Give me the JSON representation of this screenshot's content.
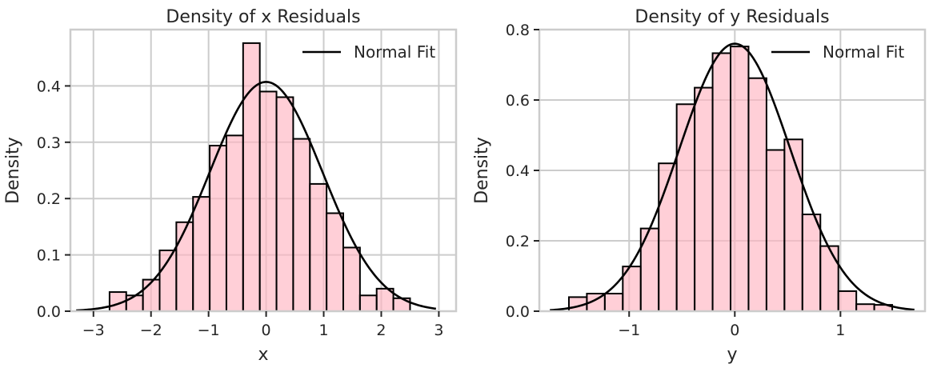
{
  "chart_data": [
    {
      "type": "histogram",
      "title": "Density of x Residuals",
      "xlabel": "x",
      "ylabel": "Density",
      "xlim": [
        -3.4,
        3.3
      ],
      "ylim": [
        0,
        0.5
      ],
      "xticks": [
        -3,
        -2,
        -1,
        0,
        1,
        2,
        3
      ],
      "xtick_labels": [
        "−3",
        "−2",
        "−1",
        "0",
        "1",
        "2",
        "3"
      ],
      "yticks": [
        0,
        0.1,
        0.2,
        0.3,
        0.4
      ],
      "ytick_labels": [
        "0.0",
        "0.1",
        "0.2",
        "0.3",
        "0.4"
      ],
      "grid": true,
      "legend_position": "top-right",
      "bin_edges": [
        -2.72,
        -2.43,
        -2.14,
        -1.85,
        -1.56,
        -1.27,
        -0.98,
        -0.69,
        -0.4,
        -0.11,
        0.18,
        0.47,
        0.76,
        1.05,
        1.34,
        1.63,
        1.92,
        2.21,
        2.5,
        2.79
      ],
      "densities": [
        0.034,
        0.028,
        0.056,
        0.108,
        0.158,
        0.203,
        0.294,
        0.312,
        0.476,
        0.39,
        0.38,
        0.306,
        0.226,
        0.174,
        0.113,
        0.028,
        0.04,
        0.023
      ],
      "series": [
        {
          "name": "Normal Fit",
          "kind": "normal_pdf",
          "mean": 0.0,
          "std": 0.98,
          "x_range": [
            -3.3,
            2.95
          ]
        }
      ]
    },
    {
      "type": "histogram",
      "title": "Density of y Residuals",
      "xlabel": "y",
      "ylabel": "Density",
      "xlim": [
        -1.85,
        1.8
      ],
      "ylim": [
        0,
        0.8
      ],
      "xticks": [
        -1,
        0,
        1
      ],
      "xtick_labels": [
        "−1",
        "0",
        "1"
      ],
      "yticks": [
        0,
        0.2,
        0.4,
        0.6,
        0.8
      ],
      "ytick_labels": [
        "0.0",
        "0.2",
        "0.4",
        "0.6",
        "0.8"
      ],
      "grid": true,
      "legend_position": "top-right",
      "bin_edges": [
        -1.57,
        -1.4,
        -1.23,
        -1.06,
        -0.89,
        -0.72,
        -0.55,
        -0.38,
        -0.21,
        -0.04,
        0.13,
        0.3,
        0.47,
        0.64,
        0.81,
        0.98,
        1.15,
        1.32,
        1.49
      ],
      "densities": [
        0.04,
        0.05,
        0.05,
        0.127,
        0.235,
        0.42,
        0.588,
        0.635,
        0.733,
        0.752,
        0.662,
        0.458,
        0.488,
        0.275,
        0.185,
        0.057,
        0.02,
        0.018
      ],
      "series": [
        {
          "name": "Normal Fit",
          "kind": "normal_pdf",
          "mean": 0.0,
          "std": 0.525,
          "x_range": [
            -1.75,
            1.7
          ]
        }
      ]
    }
  ]
}
